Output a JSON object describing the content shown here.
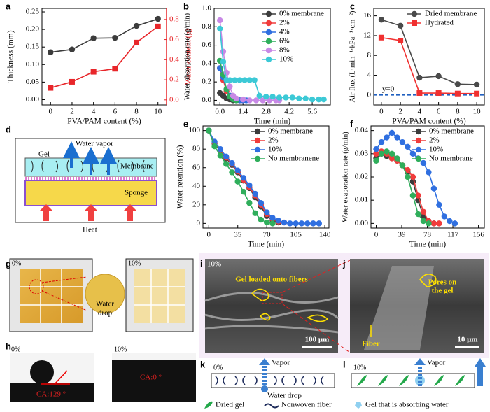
{
  "chart_data": [
    {
      "panel": "a",
      "type": "line",
      "xlabel": "PVA/PAM content (%)",
      "ylabel": "Thickness (mm)",
      "y2label": "Water content (g)",
      "x": [
        0,
        2,
        4,
        6,
        8,
        10
      ],
      "xlim": [
        -0.8,
        10.8
      ],
      "xticks": [
        0,
        2,
        4,
        6,
        8,
        10
      ],
      "ylim": [
        -0.015,
        0.26
      ],
      "yticks": [
        {
          "value": 0,
          "label": "0.00"
        },
        0.05,
        {
          "value": 0.1,
          "label": "0.10"
        },
        0.15,
        {
          "value": 0.2,
          "label": "0.20"
        },
        0.25
      ],
      "y2lim": [
        -0.05,
        0.91
      ],
      "y2ticks": [
        {
          "value": 0,
          "label": "0.0"
        },
        0.2,
        0.4,
        0.6,
        0.8
      ],
      "series": [
        {
          "name": "Thickness (mm)",
          "color": "#3c3c3c",
          "marker": "circle",
          "values": [
            0.135,
            0.143,
            0.175,
            0.176,
            0.21,
            0.23
          ]
        },
        {
          "name": "Water content (g)",
          "color": "#e8262a",
          "marker": "square",
          "axis": "y2",
          "values": [
            0.12,
            0.18,
            0.28,
            0.31,
            0.57,
            0.73
          ]
        }
      ]
    },
    {
      "panel": "b",
      "type": "line",
      "xlabel": "Time (min)",
      "ylabel": "Water absorption rate (g/min)",
      "legend": "top-right",
      "xlim": [
        -0.35,
        6.7
      ],
      "xticks": [
        {
          "value": 0,
          "label": "0.0"
        },
        1.4,
        2.8,
        4.2,
        5.6
      ],
      "ylim": [
        -0.05,
        1.0
      ],
      "yticks": [
        {
          "value": 0,
          "label": "0.0"
        },
        0.2,
        0.4,
        0.6,
        0.8,
        {
          "value": 1,
          "label": "1.0"
        }
      ],
      "series": [
        {
          "name": "0% membrane",
          "color": "#3c3c3c",
          "marker": "circle",
          "x": [
            0,
            0.2,
            0.4,
            0.6,
            0.8,
            1.0,
            1.2,
            1.4
          ],
          "values": [
            0.08,
            0.05,
            0.02,
            0.01,
            0,
            0,
            0,
            0
          ]
        },
        {
          "name": "2%",
          "color": "#f03c3c",
          "marker": "circle",
          "x": [
            0,
            0.2,
            0.4,
            0.6,
            0.8,
            1.0,
            1.2,
            1.4
          ],
          "values": [
            0.35,
            0.22,
            0.1,
            0.05,
            0.02,
            0.01,
            0,
            0
          ]
        },
        {
          "name": "4%",
          "color": "#2f6fe0",
          "marker": "circle",
          "x": [
            0,
            0.2,
            0.4,
            0.6,
            0.8,
            1.0,
            1.2,
            1.4,
            1.6
          ],
          "values": [
            0.35,
            0.25,
            0.12,
            0.05,
            0.02,
            0.01,
            0,
            0,
            0
          ]
        },
        {
          "name": "6%",
          "color": "#2fae5b",
          "marker": "circle",
          "x": [
            0,
            0.2,
            0.4,
            0.6,
            0.8,
            1.0
          ],
          "values": [
            0.43,
            0.28,
            0.12,
            0.04,
            0.01,
            0
          ]
        },
        {
          "name": "8%",
          "color": "#c889e6",
          "marker": "circle",
          "x": [
            0,
            0.2,
            0.4,
            0.6,
            0.8,
            1.0,
            1.4,
            1.8,
            2.2,
            2.6,
            3.0,
            3.4,
            3.6
          ],
          "values": [
            0.87,
            0.53,
            0.3,
            0.15,
            0.05,
            0.02,
            0.01,
            0,
            0,
            0,
            0,
            0,
            0
          ]
        },
        {
          "name": "10%",
          "color": "#3cc9d6",
          "marker": "circle",
          "x": [
            0,
            0.2,
            0.4,
            0.6,
            0.9,
            1.2,
            1.5,
            1.8,
            2.1,
            2.4,
            2.8,
            3.2,
            3.6,
            4.0,
            4.4,
            4.8,
            5.2,
            5.6,
            6.0,
            6.3
          ],
          "values": [
            0.78,
            0.42,
            0.22,
            0.22,
            0.22,
            0.22,
            0.22,
            0.22,
            0.22,
            0.05,
            0.04,
            0.04,
            0.03,
            0.03,
            0.03,
            0.02,
            0.02,
            0.01,
            0.01,
            0.01
          ]
        }
      ]
    },
    {
      "panel": "c",
      "type": "line",
      "xlabel": "PVA/PAM content (%)",
      "ylabel": "Air flux (L·min⁻¹·kPa⁻¹·cm⁻²)",
      "legend": "top-right",
      "x": [
        0,
        2,
        4,
        6,
        8,
        10
      ],
      "xlim": [
        -0.8,
        10.8
      ],
      "xticks": [
        0,
        2,
        4,
        6,
        8,
        10
      ],
      "ylim": [
        -2,
        17.5
      ],
      "yticks": [
        0,
        4,
        8,
        12,
        16
      ],
      "hline": {
        "value": 0,
        "label": "y=0",
        "color": "#2060c0"
      },
      "series": [
        {
          "name": "Dried membrane",
          "color": "#4a4a4a",
          "marker": "circle",
          "values": [
            15.2,
            14.0,
            3.5,
            3.8,
            2.2,
            2.1
          ]
        },
        {
          "name": "Hydrated",
          "color": "#f03030",
          "marker": "square",
          "values": [
            11.6,
            11.0,
            0.4,
            0.4,
            0.3,
            0.3
          ]
        }
      ]
    },
    {
      "panel": "e",
      "type": "line",
      "xlabel": "Time (min)",
      "ylabel": "Water retention (%)",
      "legend": "top-right",
      "xlim": [
        -7,
        145
      ],
      "xticks": [
        0,
        35,
        70,
        105,
        140
      ],
      "ylim": [
        -5,
        105
      ],
      "yticks": [
        0,
        20,
        40,
        60,
        80,
        100
      ],
      "series": [
        {
          "name": "0% membrane",
          "color": "#3c3c3c",
          "marker": "circle",
          "x": [
            0,
            7,
            14,
            21,
            28,
            35,
            42,
            49,
            56,
            63,
            70,
            77,
            84
          ],
          "values": [
            100,
            86,
            78,
            70,
            63,
            55,
            46,
            38,
            28,
            18,
            8,
            3,
            1
          ]
        },
        {
          "name": "2%",
          "color": "#f03c3c",
          "marker": "circle",
          "x": [
            0,
            7,
            14,
            21,
            28,
            35,
            42,
            49,
            56,
            63,
            70,
            77,
            84,
            91
          ],
          "values": [
            100,
            87,
            79,
            71,
            64,
            56,
            47,
            39,
            30,
            20,
            10,
            5,
            2,
            1
          ]
        },
        {
          "name": "10%",
          "color": "#2f6fe0",
          "marker": "circle",
          "x": [
            0,
            7,
            14,
            21,
            28,
            35,
            42,
            49,
            56,
            63,
            70,
            77,
            84,
            91,
            98,
            105,
            112,
            119,
            126,
            133
          ],
          "values": [
            100,
            88,
            80,
            72,
            65,
            57,
            49,
            41,
            32,
            22,
            12,
            6,
            3,
            1,
            0,
            0,
            0,
            0,
            0,
            0
          ]
        },
        {
          "name": "No membranene",
          "color": "#2fae5b",
          "marker": "circle",
          "x": [
            0,
            7,
            14,
            21,
            28,
            35,
            42,
            49,
            56,
            63,
            70,
            77
          ],
          "values": [
            100,
            83,
            73,
            64,
            55,
            45,
            34,
            22,
            11,
            4,
            1,
            0
          ]
        }
      ]
    },
    {
      "panel": "f",
      "type": "line",
      "xlabel": "Time (min)",
      "ylabel": "Water evaporation rate (g/min)",
      "legend": "top-right",
      "xlim": [
        -8,
        165
      ],
      "xticks": [
        0,
        39,
        78,
        117,
        156
      ],
      "ylim": [
        -0.002,
        0.042
      ],
      "yticks": [
        {
          "value": 0,
          "label": "0.00"
        },
        0.01,
        0.02,
        0.03,
        0.04
      ],
      "series": [
        {
          "name": "0% membrane",
          "color": "#3c3c3c",
          "marker": "circle",
          "x": [
            0,
            8,
            16,
            24,
            32,
            40,
            48,
            56,
            64,
            72,
            80,
            88
          ],
          "values": [
            0.028,
            0.03,
            0.029,
            0.028,
            0.027,
            0.025,
            0.022,
            0.018,
            0.01,
            0.003,
            0.001,
            0
          ]
        },
        {
          "name": "2%",
          "color": "#f03c3c",
          "marker": "circle",
          "x": [
            0,
            8,
            16,
            24,
            32,
            40,
            48,
            56,
            64,
            72,
            80,
            88,
            96
          ],
          "values": [
            0.03,
            0.031,
            0.03,
            0.028,
            0.027,
            0.025,
            0.023,
            0.02,
            0.012,
            0.005,
            0.001,
            0,
            0
          ]
        },
        {
          "name": "10%",
          "color": "#2f6fe0",
          "marker": "circle",
          "x": [
            0,
            8,
            16,
            24,
            32,
            40,
            48,
            56,
            64,
            72,
            80,
            88,
            96,
            104,
            112,
            120
          ],
          "values": [
            0.032,
            0.035,
            0.037,
            0.039,
            0.037,
            0.035,
            0.033,
            0.03,
            0.028,
            0.026,
            0.022,
            0.015,
            0.008,
            0.003,
            0.001,
            0
          ]
        },
        {
          "name": "No membrane",
          "color": "#2fae5b",
          "marker": "circle",
          "x": [
            0,
            8,
            16,
            24,
            32,
            40,
            48,
            56,
            64,
            72,
            80
          ],
          "values": [
            0.027,
            0.03,
            0.031,
            0.03,
            0.028,
            0.025,
            0.02,
            0.012,
            0.004,
            0.001,
            0
          ]
        }
      ]
    }
  ],
  "panels": {
    "d": {
      "label": "d",
      "gel": "Gel",
      "vapor": "Water vapor",
      "membrane": "Membrane",
      "sponge": "Sponge",
      "heat": "Heat"
    },
    "g": {
      "label": "g",
      "left": "0%",
      "right": "10%",
      "drop": [
        "Water",
        "drop"
      ]
    },
    "h": {
      "label": "h",
      "left": "0%",
      "left_ca": "CA:129 °",
      "right": "10%",
      "right_ca": "CA:0 °"
    },
    "i": {
      "label": "i",
      "tag": "10%",
      "note": "Gel loaded onto fibers",
      "scale": "100 μm"
    },
    "j": {
      "label": "j",
      "note": [
        "Pores on",
        "the gel"
      ],
      "fiber": "Fiber",
      "scale": "10 μm"
    },
    "k": {
      "label": "k",
      "tag": "0%",
      "vapor": "Vapor",
      "drop": "Water drop"
    },
    "l": {
      "label": "l",
      "tag": "10%",
      "vapor": "Vapor"
    },
    "legend": {
      "dried": "Dried gel",
      "fiber": "Nonwoven fiber",
      "absorbing": "Gel that is absorbing water"
    }
  }
}
